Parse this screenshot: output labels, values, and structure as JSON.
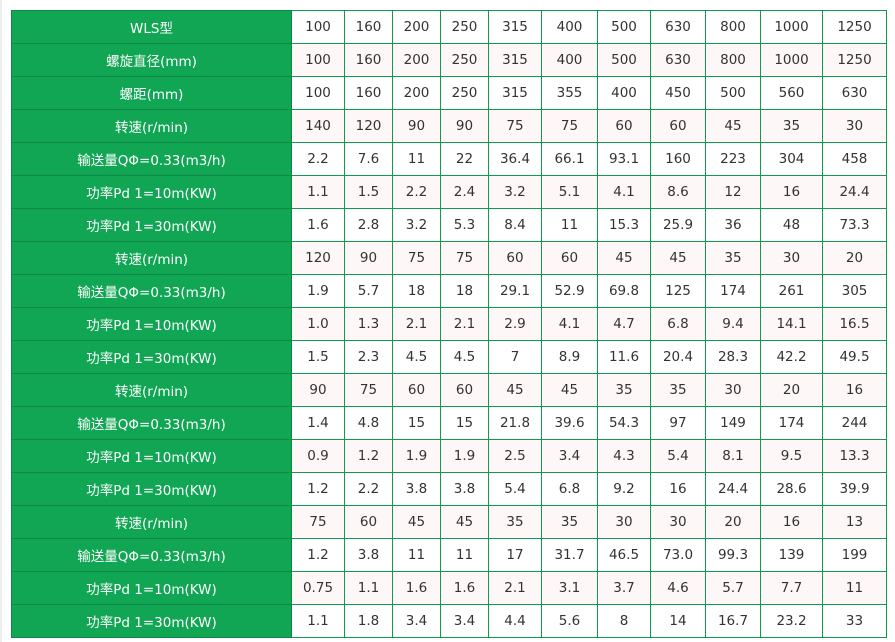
{
  "colors": {
    "header_bg": "#10a653",
    "border": "#0f9a4f",
    "alt_row_bg": "#fdf7f7"
  },
  "rows": [
    {
      "label": "WLS型",
      "values": [
        "100",
        "160",
        "200",
        "250",
        "315",
        "400",
        "500",
        "630",
        "800",
        "1000",
        "1250"
      ]
    },
    {
      "label": "螺旋直径(mm)",
      "values": [
        "100",
        "160",
        "200",
        "250",
        "315",
        "400",
        "500",
        "630",
        "800",
        "1000",
        "1250"
      ]
    },
    {
      "label": "螺距(mm)",
      "values": [
        "100",
        "160",
        "200",
        "250",
        "315",
        "355",
        "400",
        "450",
        "500",
        "560",
        "630"
      ]
    },
    {
      "label": "转速(r/min)",
      "values": [
        "140",
        "120",
        "90",
        "90",
        "75",
        "75",
        "60",
        "60",
        "45",
        "35",
        "30"
      ]
    },
    {
      "label": "输送量QΦ=0.33(m3/h)",
      "values": [
        "2.2",
        "7.6",
        "11",
        "22",
        "36.4",
        "66.1",
        "93.1",
        "160",
        "223",
        "304",
        "458"
      ]
    },
    {
      "label": "功率Pd 1=10m(KW)",
      "values": [
        "1.1",
        "1.5",
        "2.2",
        "2.4",
        "3.2",
        "5.1",
        "4.1",
        "8.6",
        "12",
        "16",
        "24.4"
      ]
    },
    {
      "label": "功率Pd 1=30m(KW)",
      "values": [
        "1.6",
        "2.8",
        "3.2",
        "5.3",
        "8.4",
        "11",
        "15.3",
        "25.9",
        "36",
        "48",
        "73.3"
      ]
    },
    {
      "label": "转速(r/min)",
      "values": [
        "120",
        "90",
        "75",
        "75",
        "60",
        "60",
        "45",
        "45",
        "35",
        "30",
        "20"
      ]
    },
    {
      "label": "输送量QΦ=0.33(m3/h)",
      "values": [
        "1.9",
        "5.7",
        "18",
        "18",
        "29.1",
        "52.9",
        "69.8",
        "125",
        "174",
        "261",
        "305"
      ]
    },
    {
      "label": "功率Pd 1=10m(KW)",
      "values": [
        "1.0",
        "1.3",
        "2.1",
        "2.1",
        "2.9",
        "4.1",
        "4.7",
        "6.8",
        "9.4",
        "14.1",
        "16.5"
      ]
    },
    {
      "label": "功率Pd 1=30m(KW)",
      "values": [
        "1.5",
        "2.3",
        "4.5",
        "4.5",
        "7",
        "8.9",
        "11.6",
        "20.4",
        "28.3",
        "42.2",
        "49.5"
      ]
    },
    {
      "label": "转速(r/min)",
      "values": [
        "90",
        "75",
        "60",
        "60",
        "45",
        "45",
        "35",
        "35",
        "30",
        "20",
        "16"
      ]
    },
    {
      "label": "输送量QΦ=0.33(m3/h)",
      "values": [
        "1.4",
        "4.8",
        "15",
        "15",
        "21.8",
        "39.6",
        "54.3",
        "97",
        "149",
        "174",
        "244"
      ]
    },
    {
      "label": "功率Pd 1=10m(KW)",
      "values": [
        "0.9",
        "1.2",
        "1.9",
        "1.9",
        "2.5",
        "3.4",
        "4.3",
        "5.4",
        "8.1",
        "9.5",
        "13.3"
      ]
    },
    {
      "label": "功率Pd 1=30m(KW)",
      "values": [
        "1.2",
        "2.2",
        "3.8",
        "3.8",
        "5.4",
        "6.8",
        "9.2",
        "16",
        "24.4",
        "28.6",
        "39.9"
      ]
    },
    {
      "label": "转速(r/min)",
      "values": [
        "75",
        "60",
        "45",
        "45",
        "35",
        "35",
        "30",
        "30",
        "20",
        "16",
        "13"
      ]
    },
    {
      "label": "输送量QΦ=0.33(m3/h)",
      "values": [
        "1.2",
        "3.8",
        "11",
        "11",
        "17",
        "31.7",
        "46.5",
        "73.0",
        "99.3",
        "139",
        "199"
      ]
    },
    {
      "label": "功率Pd 1=10m(KW)",
      "values": [
        "0.75",
        "1.1",
        "1.6",
        "1.6",
        "2.1",
        "3.1",
        "3.7",
        "4.6",
        "5.7",
        "7.7",
        "11"
      ]
    },
    {
      "label": "功率Pd 1=30m(KW)",
      "values": [
        "1.1",
        "1.8",
        "3.4",
        "3.4",
        "4.4",
        "5.6",
        "8",
        "14",
        "16.7",
        "23.2",
        "33"
      ]
    }
  ]
}
